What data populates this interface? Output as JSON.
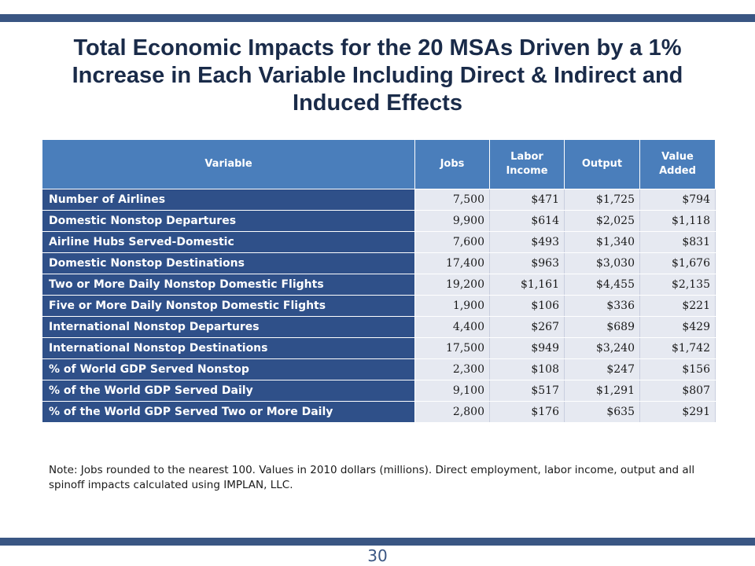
{
  "title": "Total Economic Impacts for the 20 MSAs Driven by a 1% Increase in Each Variable Including Direct & Indirect and Induced Effects",
  "table": {
    "headers": [
      "Variable",
      "Jobs",
      "Labor Income",
      "Output",
      "Value Added"
    ],
    "rows": [
      [
        "Number of Airlines",
        "7,500",
        "$471",
        "$1,725",
        "$794"
      ],
      [
        "Domestic Nonstop Departures",
        "9,900",
        "$614",
        "$2,025",
        "$1,118"
      ],
      [
        "Airline Hubs Served-Domestic",
        "7,600",
        "$493",
        "$1,340",
        "$831"
      ],
      [
        "Domestic Nonstop Destinations",
        "17,400",
        "$963",
        "$3,030",
        "$1,676"
      ],
      [
        "Two or More Daily Nonstop Domestic Flights",
        "19,200",
        "$1,161",
        "$4,455",
        "$2,135"
      ],
      [
        "Five or More Daily Nonstop Domestic Flights",
        "1,900",
        "$106",
        "$336",
        "$221"
      ],
      [
        "International Nonstop Departures",
        "4,400",
        "$267",
        "$689",
        "$429"
      ],
      [
        "International Nonstop Destinations",
        "17,500",
        "$949",
        "$3,240",
        "$1,742"
      ],
      [
        "% of World GDP Served Nonstop",
        "2,300",
        "$108",
        "$247",
        "$156"
      ],
      [
        "% of the World GDP Served Daily",
        "9,100",
        "$517",
        "$1,291",
        "$807"
      ],
      [
        "% of the World GDP Served Two or More Daily",
        "2,800",
        "$176",
        "$635",
        "$291"
      ]
    ]
  },
  "note": "Note: Jobs rounded to the nearest 100.  Values in 2010 dollars (millions). Direct employment, labor income, output and all spinoff impacts calculated using IMPLAN, LLC.",
  "page_number": "30",
  "colors": {
    "accent_bar": "#3a5683",
    "header_fill": "#4a7ebb",
    "variable_fill": "#2f5089",
    "cell_fill": "#e6e9f1"
  }
}
